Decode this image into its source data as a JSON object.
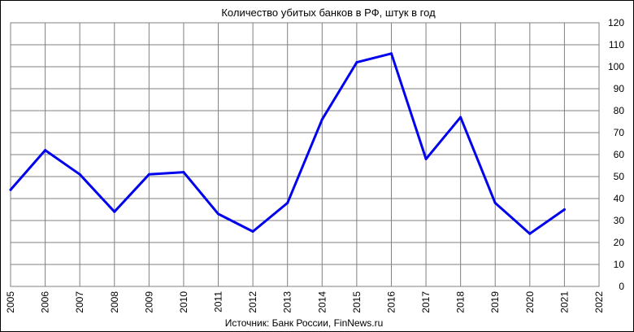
{
  "chart_data": {
    "type": "line",
    "title": "Количество  убитых  банков  в РФ,  штук в год",
    "source": "Источник: Банк России, FinNews.ru",
    "xlabel": "",
    "ylabel": "",
    "x_ticks": [
      "2005",
      "2006",
      "2007",
      "2008",
      "2009",
      "2010",
      "2011",
      "2012",
      "2013",
      "2014",
      "2015",
      "2016",
      "2017",
      "2018",
      "2019",
      "2020",
      "2021",
      "2022"
    ],
    "y_ticks": [
      "0",
      "10",
      "20",
      "30",
      "40",
      "50",
      "60",
      "70",
      "80",
      "90",
      "100",
      "110",
      "120"
    ],
    "xlim": [
      2005,
      2022
    ],
    "ylim": [
      0,
      120
    ],
    "grid": true,
    "y_axis_position": "right",
    "series": [
      {
        "color": "#0000ee",
        "x": [
          2005,
          2006,
          2007,
          2008,
          2009,
          2010,
          2011,
          2012,
          2013,
          2014,
          2015,
          2016,
          2017,
          2018,
          2019,
          2020,
          2021
        ],
        "values": [
          44,
          62,
          51,
          34,
          51,
          52,
          33,
          25,
          38,
          76,
          102,
          106,
          58,
          77,
          38,
          24,
          35
        ]
      }
    ]
  }
}
